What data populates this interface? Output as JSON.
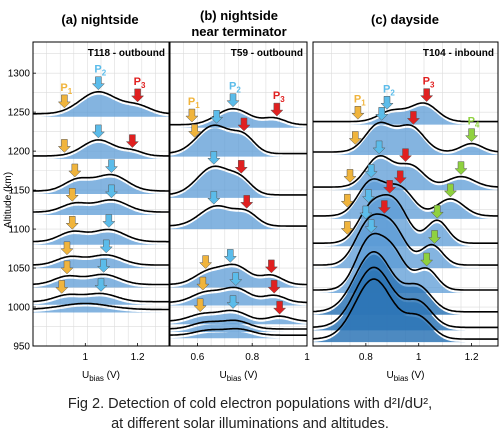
{
  "caption": {
    "line1": "Fig 2. Detection of cold electron populations with d²I/dU²,",
    "line2": "at different solar illuminations and altitudes."
  },
  "colors": {
    "fill": "#5b9bd5",
    "fill_dark": "#2e75b6",
    "p1": "#f0b43c",
    "p2": "#5bbcea",
    "p3": "#e02020",
    "p4": "#8fd13f"
  },
  "chart_data": [
    {
      "type": "line",
      "panel_title": "(a) nightside",
      "subtitle": "T118 - outbound",
      "xlabel": "U",
      "xlabel_sub": "bias",
      "xlabel_unit": " (V)",
      "ylabel": "Altitude (km)",
      "xlim": [
        0.8,
        1.32
      ],
      "ylim": [
        950,
        1340
      ],
      "xticks": [
        1,
        1.2
      ],
      "yticks": [
        950,
        1000,
        1050,
        1100,
        1150,
        1200,
        1250,
        1300
      ],
      "grid": true,
      "marker_labels": [
        "P1",
        "P2",
        "P3"
      ],
      "curves": [
        {
          "altitude": 1244,
          "amp": 22,
          "bumps": [
            [
              1.05,
              0.07,
              1
            ],
            [
              1.2,
              0.05,
              0.35
            ]
          ],
          "arrows": [
            [
              0.92,
              "p1"
            ],
            [
              1.05,
              "p2"
            ],
            [
              1.2,
              "p3"
            ]
          ]
        },
        {
          "altitude": 1190,
          "amp": 16,
          "bumps": [
            [
              1.05,
              0.06,
              1
            ],
            [
              1.18,
              0.04,
              0.3
            ]
          ],
          "arrows": [
            [
              0.92,
              "p1"
            ],
            [
              1.05,
              "p2"
            ],
            [
              1.18,
              "p3"
            ]
          ]
        },
        {
          "altitude": 1145,
          "amp": 16,
          "bumps": [
            [
              0.97,
              0.05,
              0.7
            ],
            [
              1.1,
              0.06,
              1
            ]
          ],
          "arrows": [
            [
              0.96,
              "p1"
            ],
            [
              1.1,
              "p2"
            ]
          ]
        },
        {
          "altitude": 1118,
          "amp": 12,
          "bumps": [
            [
              0.96,
              0.05,
              0.7
            ],
            [
              1.1,
              0.06,
              1
            ]
          ],
          "arrows": [
            [
              0.95,
              "p1"
            ],
            [
              1.1,
              "p2"
            ]
          ]
        },
        {
          "altitude": 1080,
          "amp": 12,
          "bumps": [
            [
              0.95,
              0.05,
              0.8
            ],
            [
              1.09,
              0.06,
              1
            ]
          ],
          "arrows": [
            [
              0.95,
              "p1"
            ],
            [
              1.09,
              "p2"
            ]
          ]
        },
        {
          "altitude": 1050,
          "amp": 10,
          "bumps": [
            [
              0.94,
              0.05,
              0.8
            ],
            [
              1.08,
              0.06,
              1
            ]
          ],
          "arrows": [
            [
              0.93,
              "p1"
            ],
            [
              1.08,
              "p2"
            ]
          ]
        },
        {
          "altitude": 1025,
          "amp": 10,
          "bumps": [
            [
              0.93,
              0.05,
              0.8
            ],
            [
              1.07,
              0.06,
              1
            ]
          ],
          "arrows": [
            [
              0.93,
              "p1"
            ],
            [
              1.07,
              "p2"
            ]
          ]
        },
        {
          "altitude": 1003,
          "amp": 8,
          "bumps": [
            [
              0.93,
              0.05,
              0.8
            ],
            [
              1.06,
              0.06,
              1
            ]
          ],
          "arrows": [
            [
              0.91,
              "p1"
            ],
            [
              1.06,
              "p2"
            ]
          ]
        },
        {
          "altitude": 993,
          "amp": 6,
          "bumps": [
            [
              1.0,
              0.09,
              1
            ]
          ],
          "arrows": []
        }
      ]
    },
    {
      "type": "line",
      "panel_title": "(b) nightside",
      "panel_title_2": "near terminator",
      "subtitle": "T59 - outbound",
      "xlabel": "U",
      "xlabel_sub": "bias",
      "xlabel_unit": " (V)",
      "xlim": [
        0.5,
        1.0
      ],
      "ylim": [
        950,
        1340
      ],
      "xticks": [
        0.6,
        0.8,
        1
      ],
      "grid": true,
      "marker_labels": [
        "P1",
        "P2",
        "P3"
      ],
      "curves": [
        {
          "altitude": 1230,
          "amp": 16,
          "bumps": [
            [
              0.73,
              0.06,
              1
            ],
            [
              0.88,
              0.04,
              0.4
            ]
          ],
          "arrows": [
            [
              0.58,
              "p1"
            ],
            [
              0.73,
              "p2"
            ],
            [
              0.89,
              "p3"
            ]
          ]
        },
        {
          "altitude": 1193,
          "amp": 28,
          "bumps": [
            [
              0.66,
              0.06,
              1
            ],
            [
              0.77,
              0.04,
              0.55
            ]
          ],
          "arrows": [
            [
              0.59,
              "p1"
            ],
            [
              0.67,
              "p2"
            ],
            [
              0.77,
              "p3"
            ]
          ]
        },
        {
          "altitude": 1140,
          "amp": 28,
          "bumps": [
            [
              0.66,
              0.06,
              1
            ],
            [
              0.76,
              0.04,
              0.45
            ]
          ],
          "arrows": [
            [
              0.66,
              "p2"
            ],
            [
              0.76,
              "p3"
            ]
          ]
        },
        {
          "altitude": 1100,
          "amp": 20,
          "bumps": [
            [
              0.67,
              0.06,
              1
            ],
            [
              0.78,
              0.04,
              0.6
            ]
          ],
          "arrows": [
            [
              0.66,
              "p2"
            ],
            [
              0.78,
              "p3"
            ]
          ]
        },
        {
          "altitude": 1025,
          "amp": 18,
          "bumps": [
            [
              0.64,
              0.05,
              0.7
            ],
            [
              0.74,
              0.05,
              1
            ],
            [
              0.87,
              0.04,
              0.5
            ]
          ],
          "arrows": [
            [
              0.63,
              "p1"
            ],
            [
              0.72,
              "p2"
            ],
            [
              0.87,
              "p3"
            ]
          ]
        },
        {
          "altitude": 1002,
          "amp": 14,
          "bumps": [
            [
              0.63,
              0.05,
              0.7
            ],
            [
              0.74,
              0.05,
              1
            ],
            [
              0.88,
              0.04,
              0.5
            ]
          ],
          "arrows": [
            [
              0.62,
              "p1"
            ],
            [
              0.74,
              "p2"
            ],
            [
              0.88,
              "p3"
            ]
          ]
        },
        {
          "altitude": 978,
          "amp": 10,
          "bumps": [
            [
              0.62,
              0.05,
              0.7
            ],
            [
              0.73,
              0.05,
              1
            ],
            [
              0.9,
              0.04,
              0.5
            ]
          ],
          "arrows": [
            [
              0.61,
              "p1"
            ],
            [
              0.73,
              "p2"
            ],
            [
              0.9,
              "p3"
            ]
          ]
        },
        {
          "altitude": 968,
          "amp": 8,
          "bumps": [
            [
              0.63,
              0.05,
              0.8
            ],
            [
              0.74,
              0.05,
              1
            ]
          ],
          "arrows": []
        },
        {
          "altitude": 960,
          "amp": 6,
          "bumps": [
            [
              0.64,
              0.05,
              0.8
            ],
            [
              0.75,
              0.05,
              1
            ]
          ],
          "arrows": []
        }
      ]
    },
    {
      "type": "line",
      "panel_title": "(c) dayside",
      "subtitle": "T104 - inbound",
      "xlabel": "U",
      "xlabel_sub": "bias",
      "xlabel_unit": " (V)",
      "xlim": [
        0.6,
        1.3
      ],
      "ylim": [
        950,
        1340
      ],
      "xticks": [
        0.8,
        1,
        1.2
      ],
      "grid": true,
      "marker_labels": [
        "P1",
        "P2",
        "P3",
        "P4"
      ],
      "curves": [
        {
          "altitude": 1234,
          "amp": 18,
          "bumps": [
            [
              0.9,
              0.05,
              0.6
            ],
            [
              1.02,
              0.05,
              1
            ]
          ],
          "arrows": [
            [
              0.77,
              "p1"
            ],
            [
              0.88,
              "p2"
            ],
            [
              1.03,
              "p3"
            ]
          ]
        },
        {
          "altitude": 1195,
          "amp": 28,
          "bumps": [
            [
              0.85,
              0.05,
              1
            ],
            [
              0.97,
              0.05,
              0.9
            ],
            [
              1.2,
              0.04,
              0.3
            ]
          ],
          "arrows": [
            [
              0.76,
              "p1"
            ],
            [
              0.86,
              "p2"
            ],
            [
              0.98,
              "p3"
            ],
            [
              1.2,
              "p4"
            ]
          ]
        },
        {
          "altitude": 1150,
          "amp": 30,
          "bumps": [
            [
              0.85,
              0.05,
              1
            ],
            [
              0.97,
              0.05,
              0.7
            ],
            [
              1.16,
              0.05,
              0.35
            ]
          ],
          "arrows": [
            [
              0.74,
              "p1"
            ],
            [
              0.85,
              "p2"
            ],
            [
              0.95,
              "p3"
            ],
            [
              1.16,
              "p4"
            ]
          ]
        },
        {
          "altitude": 1113,
          "amp": 34,
          "bumps": [
            [
              0.82,
              0.05,
              1
            ],
            [
              0.93,
              0.05,
              0.8
            ],
            [
              1.12,
              0.05,
              0.5
            ]
          ],
          "arrows": [
            [
              0.73,
              "p1"
            ],
            [
              0.82,
              "p2"
            ],
            [
              0.93,
              "p3"
            ],
            [
              1.12,
              "p4"
            ]
          ]
        },
        {
          "altitude": 1078,
          "amp": 38,
          "bumps": [
            [
              0.82,
              0.05,
              0.9
            ],
            [
              0.91,
              0.05,
              1
            ],
            [
              1.07,
              0.04,
              0.6
            ]
          ],
          "arrows": [
            [
              0.73,
              "p1"
            ],
            [
              0.81,
              "p2"
            ],
            [
              0.89,
              "p3"
            ],
            [
              1.07,
              "p4"
            ]
          ]
        },
        {
          "altitude": 1050,
          "amp": 40,
          "bumps": [
            [
              0.81,
              0.05,
              1
            ],
            [
              0.9,
              0.05,
              0.9
            ],
            [
              1.05,
              0.04,
              0.5
            ]
          ],
          "arrows": [
            [
              0.8,
              "p2"
            ],
            [
              0.87,
              "p3"
            ],
            [
              1.06,
              "p4"
            ]
          ]
        },
        {
          "altitude": 1018,
          "amp": 46,
          "bumps": [
            [
              0.81,
              0.05,
              1
            ],
            [
              0.9,
              0.05,
              0.8
            ],
            [
              1.03,
              0.04,
              0.45
            ]
          ],
          "arrows": [
            [
              0.82,
              "p2"
            ],
            [
              1.03,
              "p4"
            ]
          ]
        },
        {
          "altitude": 990,
          "amp": 60,
          "bumps": [
            [
              0.83,
              0.07,
              1
            ],
            [
              1.0,
              0.05,
              0.4
            ]
          ],
          "arrows": []
        },
        {
          "altitude": 970,
          "amp": 60,
          "bumps": [
            [
              0.83,
              0.07,
              1
            ],
            [
              1.0,
              0.05,
              0.4
            ]
          ],
          "arrows": []
        },
        {
          "altitude": 955,
          "amp": 60,
          "bumps": [
            [
              0.83,
              0.07,
              1
            ],
            [
              1.0,
              0.05,
              0.35
            ]
          ],
          "arrows": []
        }
      ]
    }
  ]
}
